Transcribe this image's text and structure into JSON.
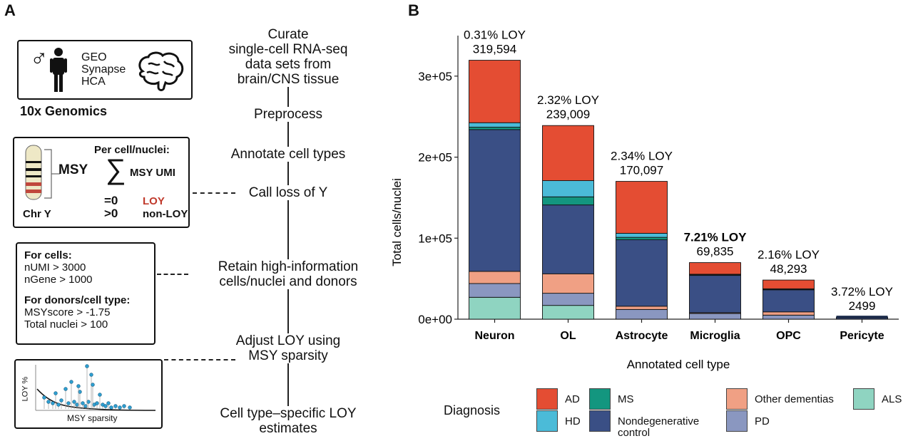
{
  "panel_a": {
    "letter": "A",
    "sources_box": {
      "lines": [
        "GEO",
        "Synapse",
        "HCA"
      ],
      "caption": "10x Genomics"
    },
    "msy_box": {
      "msy_label": "MSY",
      "per_cell": "Per cell/nuclei:",
      "sum_label": "MSY UMI",
      "eq0": "=0",
      "loy": "LOY",
      "gt0": ">0",
      "non_loy": "non-LOY",
      "chr_label": "Chr Y"
    },
    "filter_box": {
      "cells_title": "For cells:",
      "cells_lines": [
        "nUMI > 3000",
        "nGene > 1000"
      ],
      "donors_title": "For donors/cell type:",
      "donors_lines": [
        "MSYscore > -1.75",
        "Total nuclei > 100"
      ]
    },
    "mini_plot": {
      "ylabel": "LOY %",
      "xlabel": "MSY sparsity"
    },
    "steps": [
      "Curate single-cell RNA-seq data sets from brain/CNS tissue",
      "Preprocess",
      "Annotate cell types",
      "Call loss of Y",
      "Retain high-information cells/nuclei and donors",
      "Adjust LOY using MSY sparsity",
      "Cell type–specific LOY estimates"
    ],
    "step_lines": [
      [
        "Curate",
        "single-cell RNA-seq",
        "data sets from",
        "brain/CNS tissue"
      ],
      [
        "Preprocess"
      ],
      [
        "Annotate cell types"
      ],
      [
        "Call loss of Y"
      ],
      [
        "Retain high-information",
        "cells/nuclei and donors"
      ],
      [
        "Adjust LOY using",
        "MSY sparsity"
      ],
      [
        "Cell type–specific LOY",
        "estimates"
      ]
    ]
  },
  "panel_b": {
    "letter": "B",
    "chart_data": {
      "type": "bar",
      "stacked": true,
      "ylabel": "Total cells/nuclei",
      "xlabel": "Annotated cell type",
      "ylim": [
        0,
        350000
      ],
      "yticks": [
        0,
        100000,
        200000,
        300000
      ],
      "ytick_labels": [
        "0e+00",
        "1e+05",
        "2e+05",
        "3e+05"
      ],
      "categories": [
        "Neuron",
        "OL",
        "Astrocyte",
        "Microglia",
        "OPC",
        "Pericyte"
      ],
      "totals": [
        319594,
        239009,
        170097,
        69835,
        48293,
        2499
      ],
      "loy_labels": [
        "0.31% LOY",
        "2.32% LOY",
        "2.34% LOY",
        "7.21% LOY",
        "2.16% LOY",
        "3.72% LOY"
      ],
      "count_labels": [
        "319,594",
        "239,009",
        "170,097",
        "69,835",
        "48,293",
        "2499"
      ],
      "bold_labels": [
        false,
        false,
        false,
        true,
        false,
        false
      ],
      "series_order_bottom_to_top": [
        "ALS",
        "PD",
        "Other dementias",
        "Nondegenerative control",
        "MS",
        "HD",
        "AD"
      ],
      "series": [
        {
          "name": "ALS",
          "color": "#8fd4c1",
          "values": [
            27000,
            17000,
            0,
            0,
            0,
            0
          ]
        },
        {
          "name": "PD",
          "color": "#8a97c0",
          "values": [
            17000,
            15000,
            12000,
            7000,
            5000,
            0
          ]
        },
        {
          "name": "Other dementias",
          "color": "#f0a084",
          "values": [
            15000,
            24000,
            4000,
            1000,
            4000,
            0
          ]
        },
        {
          "name": "Nondegenerative control",
          "color": "#3a4f85",
          "values": [
            175000,
            85000,
            82000,
            46000,
            27500,
            2000
          ]
        },
        {
          "name": "MS",
          "color": "#13967f",
          "values": [
            3000,
            10000,
            3000,
            1000,
            500,
            0
          ]
        },
        {
          "name": "HD",
          "color": "#4bbbd8",
          "values": [
            5500,
            20000,
            5000,
            500,
            500,
            0
          ]
        },
        {
          "name": "AD",
          "color": "#e44d33",
          "values": [
            77094,
            68009,
            64097,
            14335,
            10793,
            499
          ]
        }
      ],
      "legend": {
        "title": "Diagnosis",
        "position": "bottom",
        "items": [
          {
            "name": "AD",
            "color": "#e44d33"
          },
          {
            "name": "HD",
            "color": "#4bbbd8"
          },
          {
            "name": "MS",
            "color": "#13967f"
          },
          {
            "name": "Nondegenerative control",
            "color": "#3a4f85"
          },
          {
            "name": "Other dementias",
            "color": "#f0a084"
          },
          {
            "name": "PD",
            "color": "#8a97c0"
          },
          {
            "name": "ALS",
            "color": "#8fd4c1"
          }
        ]
      }
    }
  }
}
